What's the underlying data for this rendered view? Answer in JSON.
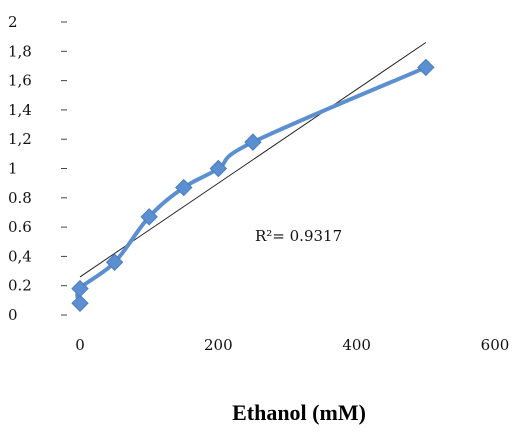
{
  "chart_data": {
    "type": "scatter",
    "title": "",
    "xlabel": "Ethanol (mM)",
    "ylabel": "",
    "xlim": [
      0,
      600
    ],
    "ylim": [
      0,
      2
    ],
    "x_ticks": [
      "0",
      "200",
      "400",
      "600"
    ],
    "y_ticks": [
      "0",
      "0.2",
      "0,4",
      "0.6",
      "0.8",
      "1",
      "1,2",
      "1,4",
      "1,6",
      "1,8",
      "2"
    ],
    "grid": false,
    "legend": "none",
    "series": [
      {
        "x": [
          0,
          0,
          50,
          100,
          150,
          200,
          250,
          500
        ],
        "y": [
          0.08,
          0.18,
          0.36,
          0.67,
          0.87,
          1.0,
          1.18,
          1.69
        ],
        "marker": "diamond",
        "line": "smoothed",
        "color": "#5b8fd0"
      }
    ],
    "trendline": {
      "type": "linear",
      "x": [
        0,
        500
      ],
      "y": [
        0.26,
        1.86
      ],
      "color": "#222222"
    },
    "annotations": [
      {
        "text": "R²= 0.9317"
      }
    ]
  }
}
